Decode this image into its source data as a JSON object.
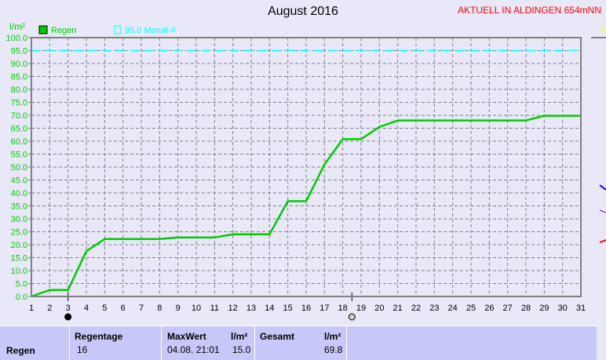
{
  "header": {
    "title": "August 2016",
    "aktuell": "AKTUELL IN ALDINGEN 654mNN"
  },
  "chart_data": {
    "type": "line",
    "title": "August 2016",
    "ylabel": "l/m²",
    "ylim": [
      0,
      100
    ],
    "xlim": [
      1,
      31
    ],
    "grid": true,
    "legend_placement": "top-left",
    "yticks": [
      "0.0",
      "5.0",
      "10.0",
      "15.0",
      "20.0",
      "25.0",
      "30.0",
      "35.0",
      "40.0",
      "45.0",
      "50.0",
      "55.0",
      "60.0",
      "65.0",
      "70.0",
      "75.0",
      "80.0",
      "85.0",
      "90.0",
      "95.0",
      "100.0"
    ],
    "xticks": [
      "1",
      "2",
      "3",
      "4",
      "5",
      "6",
      "7",
      "8",
      "9",
      "10",
      "11",
      "12",
      "13",
      "14",
      "15",
      "16",
      "17",
      "18",
      "19",
      "20",
      "21",
      "22",
      "23",
      "24",
      "25",
      "26",
      "27",
      "28",
      "29",
      "30",
      "31"
    ],
    "series": [
      {
        "name": "Regen",
        "color": "#00cc00",
        "x": [
          1,
          2,
          3,
          4,
          5,
          8,
          9,
          11,
          12,
          14,
          15,
          16,
          17,
          18,
          19,
          20,
          21,
          28,
          29,
          31
        ],
        "values": [
          0,
          2.5,
          2.5,
          17.5,
          22.2,
          22.2,
          22.8,
          22.8,
          24,
          24,
          36.8,
          36.8,
          51,
          60.8,
          60.8,
          65.5,
          68,
          68,
          69.8,
          69.8
        ]
      },
      {
        "name": "95.0 Monat-#",
        "color": "#00ffff",
        "value": 95.0,
        "style": "dashed"
      }
    ],
    "markers": [
      {
        "day": 3,
        "icon": "new-moon-icon"
      },
      {
        "day": 18.5,
        "icon": "full-moon-icon"
      }
    ]
  },
  "table": {
    "row_label": "Regen",
    "regentage_label": "Regentage",
    "regentage": "16",
    "maxwert_label": "MaxWert",
    "unit": "l/m²",
    "maxwert_time": "04.08.  21:01",
    "maxwert": "15.0",
    "gesamt_label": "Gesamt",
    "gesamt": "69.8"
  }
}
